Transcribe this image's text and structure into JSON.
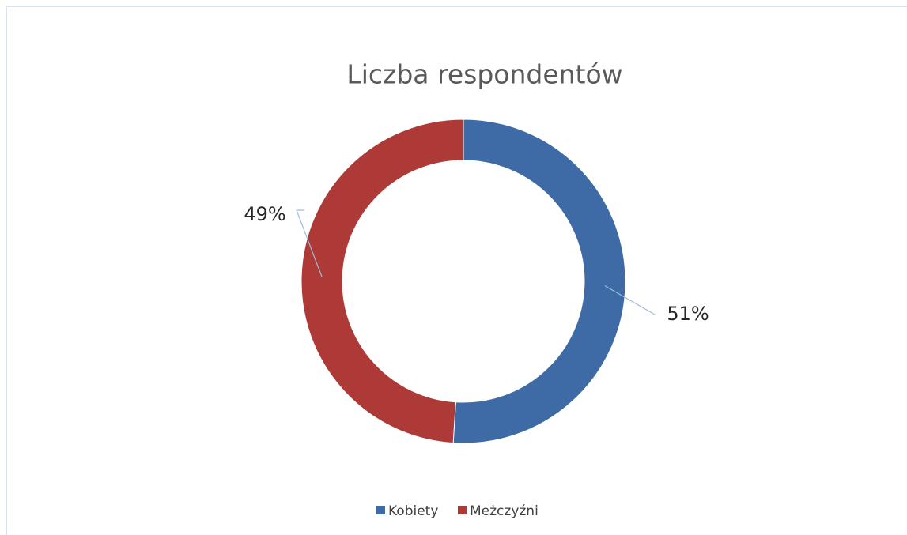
{
  "chart_data": {
    "type": "doughnut",
    "title": "Liczba respondentów",
    "categories": [
      "Kobiety",
      "Meżczyźni"
    ],
    "values": [
      51,
      49
    ],
    "value_labels": [
      "51%",
      "49%"
    ],
    "colors": [
      "#3e6aa6",
      "#ad3a37"
    ],
    "legend": "bottom"
  }
}
